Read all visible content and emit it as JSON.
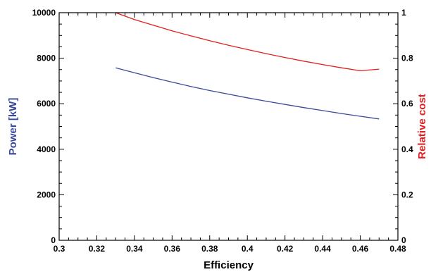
{
  "chart_data": {
    "type": "line",
    "xlabel": "Efficiency",
    "ylabel_left": "Power [kW]",
    "ylabel_right": "Relative cost",
    "xlim": [
      0.3,
      0.48
    ],
    "ylim_left": [
      0,
      10000
    ],
    "ylim_right": [
      0,
      1
    ],
    "x_ticks": [
      "0.3",
      "0.32",
      "0.34",
      "0.36",
      "0.38",
      "0.4",
      "0.42",
      "0.44",
      "0.46",
      "0.48"
    ],
    "y_ticks_left": [
      "0",
      "2000",
      "4000",
      "6000",
      "8000",
      "10000"
    ],
    "y_ticks_right": [
      "0",
      "0.2",
      "0.4",
      "0.6",
      "0.8",
      "1"
    ],
    "grid": false,
    "series": [
      {
        "axis": "left",
        "color": "#3a4a9a",
        "x": [
          0.33,
          0.34,
          0.35,
          0.36,
          0.37,
          0.38,
          0.39,
          0.4,
          0.41,
          0.42,
          0.43,
          0.44,
          0.45,
          0.46,
          0.47
        ],
        "y": [
          7580,
          7360,
          7150,
          6950,
          6760,
          6580,
          6420,
          6260,
          6110,
          5970,
          5830,
          5700,
          5570,
          5450,
          5330
        ]
      },
      {
        "axis": "right",
        "color": "#e02020",
        "x": [
          0.33,
          0.34,
          0.35,
          0.36,
          0.37,
          0.38,
          0.39,
          0.4,
          0.41,
          0.42,
          0.43,
          0.44,
          0.45,
          0.46,
          0.47
        ],
        "y": [
          1.0,
          0.97,
          0.945,
          0.92,
          0.898,
          0.877,
          0.857,
          0.838,
          0.82,
          0.803,
          0.787,
          0.772,
          0.758,
          0.745,
          0.752
        ]
      }
    ]
  }
}
